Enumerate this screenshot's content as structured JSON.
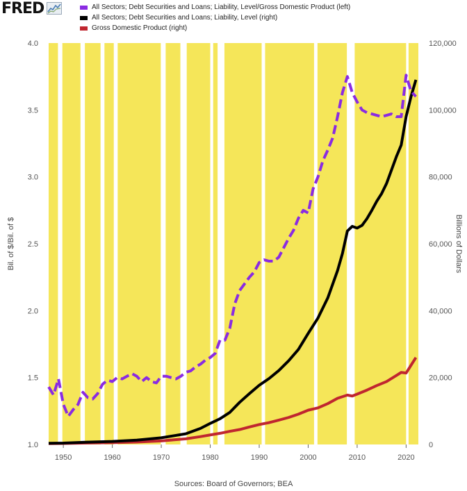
{
  "brand": {
    "name": "FRED",
    "logo_icon": "fred-sparkline-icon"
  },
  "source_text": "Sources: Board of Governors; BEA",
  "colors": {
    "recession_band": "#f5e659",
    "series_ratio": "#8a2be2",
    "series_debt": "#000000",
    "series_gdp": "#c0262f",
    "background": "#ffffff"
  },
  "chart_data": {
    "type": "line",
    "left_axis_label": "Bil. of $/Bil. of $",
    "right_axis_label": "Billions of Dollars",
    "left_ylim": [
      1.0,
      4.0
    ],
    "right_ylim": [
      0,
      120000
    ],
    "xlim": [
      1947,
      2022.5
    ],
    "x_ticks": [
      "1950",
      "1960",
      "1970",
      "1980",
      "1990",
      "2000",
      "2010",
      "2020"
    ],
    "left_ticks": [
      "1.0",
      "1.5",
      "2.0",
      "2.5",
      "3.0",
      "3.5",
      "4.0"
    ],
    "right_ticks": [
      "0",
      "20,000",
      "40,000",
      "60,000",
      "80,000",
      "100,000",
      "120,000"
    ],
    "grid": false,
    "legend_placement": "top-left",
    "background_bands": [
      [
        1947.0,
        1948.9
      ],
      [
        1949.8,
        1953.5
      ],
      [
        1954.4,
        1957.6
      ],
      [
        1958.4,
        1960.3
      ],
      [
        1961.1,
        1969.9
      ],
      [
        1970.9,
        1973.9
      ],
      [
        1975.2,
        1980.0
      ],
      [
        1980.6,
        1981.5
      ],
      [
        1982.9,
        1990.5
      ],
      [
        1991.2,
        2001.2
      ],
      [
        2001.9,
        2007.9
      ],
      [
        2009.5,
        2020.0
      ],
      [
        2020.5,
        2022.5
      ]
    ],
    "series": [
      {
        "name": "All Sectors; Debt Securities and Loans; Liability, Level/Gross Domestic Product (left)",
        "axis": "left",
        "style": "dashed",
        "x": [
          1947,
          1948,
          1949,
          1950,
          1951,
          1952,
          1953,
          1954,
          1955,
          1956,
          1957,
          1958,
          1959,
          1960,
          1961,
          1962,
          1963,
          1964,
          1965,
          1966,
          1967,
          1968,
          1969,
          1970,
          1971,
          1972,
          1973,
          1974,
          1975,
          1976,
          1977,
          1978,
          1979,
          1980,
          1981,
          1982,
          1983,
          1984,
          1985,
          1986,
          1987,
          1988,
          1989,
          1990,
          1991,
          1992,
          1993,
          1994,
          1995,
          1996,
          1997,
          1998,
          1999,
          2000,
          2001,
          2002,
          2003,
          2004,
          2005,
          2006,
          2007,
          2008,
          2009,
          2010,
          2011,
          2012,
          2013,
          2014,
          2015,
          2016,
          2017,
          2018,
          2019,
          2020,
          2021,
          2022
        ],
        "values": [
          1.43,
          1.37,
          1.49,
          1.3,
          1.21,
          1.26,
          1.3,
          1.39,
          1.35,
          1.34,
          1.38,
          1.45,
          1.48,
          1.47,
          1.5,
          1.49,
          1.51,
          1.53,
          1.51,
          1.47,
          1.5,
          1.47,
          1.46,
          1.51,
          1.51,
          1.5,
          1.49,
          1.51,
          1.54,
          1.55,
          1.58,
          1.6,
          1.63,
          1.65,
          1.68,
          1.78,
          1.78,
          1.87,
          2.05,
          2.15,
          2.2,
          2.25,
          2.29,
          2.36,
          2.38,
          2.37,
          2.37,
          2.4,
          2.47,
          2.54,
          2.6,
          2.69,
          2.75,
          2.73,
          2.91,
          3.0,
          3.12,
          3.2,
          3.29,
          3.45,
          3.63,
          3.75,
          3.63,
          3.56,
          3.5,
          3.48,
          3.47,
          3.46,
          3.45,
          3.46,
          3.47,
          3.45,
          3.45,
          3.76,
          3.64,
          3.6
        ]
      },
      {
        "name": "All Sectors; Debt Securities and Loans; Liability, Level (right)",
        "axis": "right",
        "style": "solid",
        "x": [
          1947,
          1950,
          1955,
          1960,
          1965,
          1970,
          1975,
          1978,
          1980,
          1982,
          1984,
          1986,
          1988,
          1990,
          1992,
          1994,
          1996,
          1998,
          2000,
          2002,
          2004,
          2006,
          2007,
          2008,
          2009,
          2010,
          2011,
          2012,
          2013,
          2014,
          2015,
          2016,
          2017,
          2018,
          2019,
          2020,
          2021,
          2022
        ],
        "values": [
          350,
          420,
          700,
          900,
          1300,
          2000,
          3200,
          4800,
          6300,
          7700,
          9600,
          12600,
          15200,
          17700,
          19700,
          22100,
          25000,
          28400,
          33200,
          37800,
          43800,
          52000,
          57100,
          63800,
          65200,
          64700,
          65500,
          67500,
          70000,
          72700,
          75000,
          78000,
          82000,
          86000,
          89500,
          98000,
          104000,
          109000
        ]
      },
      {
        "name": "Gross Domestic Product (right)",
        "axis": "right",
        "style": "solid",
        "x": [
          1947,
          1950,
          1955,
          1960,
          1965,
          1970,
          1975,
          1978,
          1980,
          1982,
          1984,
          1986,
          1988,
          1990,
          1992,
          1994,
          1996,
          1998,
          2000,
          2002,
          2004,
          2006,
          2008,
          2009,
          2010,
          2012,
          2014,
          2016,
          2018,
          2019,
          2020,
          2021,
          2022
        ],
        "values": [
          250,
          300,
          430,
          540,
          740,
          1070,
          1690,
          2350,
          2860,
          3340,
          3930,
          4460,
          5240,
          5960,
          6520,
          7290,
          8070,
          9060,
          10250,
          10930,
          12210,
          13810,
          14770,
          14480,
          15050,
          16250,
          17610,
          18800,
          20610,
          21540,
          21350,
          23680,
          26000
        ]
      }
    ]
  }
}
